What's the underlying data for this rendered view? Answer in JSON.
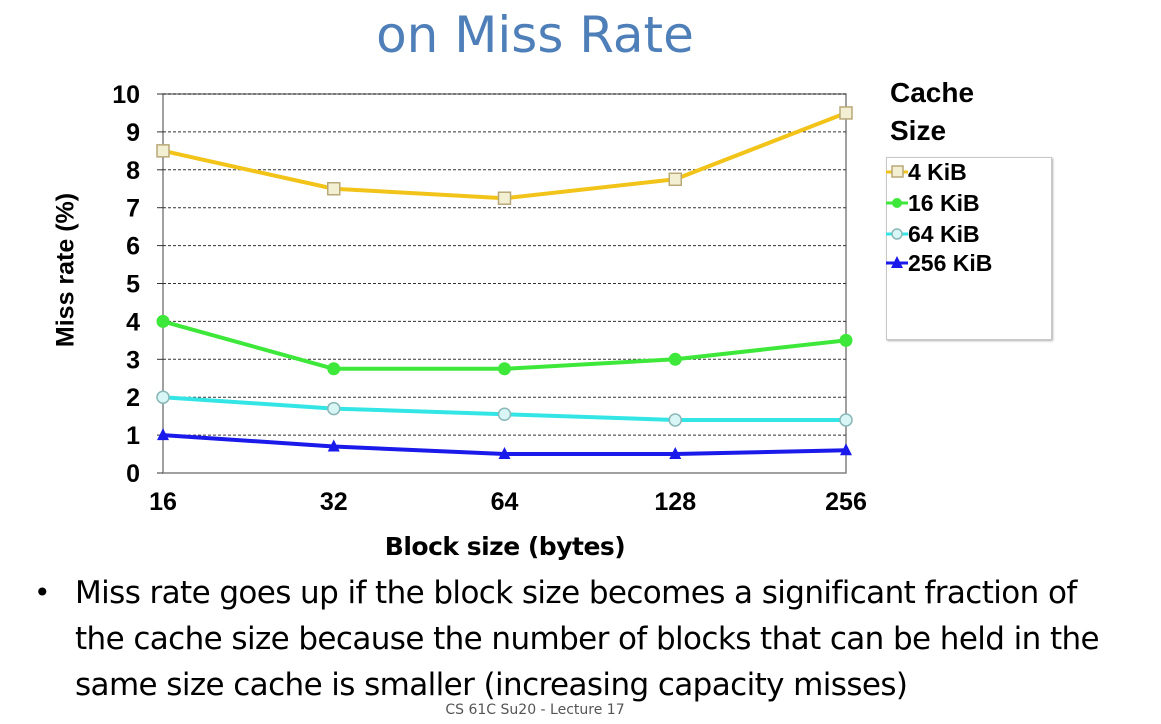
{
  "slide": {
    "title": "on Miss Rate",
    "bullets": [
      "Miss rate goes up if the block size becomes a significant fraction of the cache size because the number of blocks that can be held in the same size cache is smaller (increasing capacity misses)"
    ],
    "footer": "CS 61C Su20 - Lecture 17"
  },
  "chart_data": {
    "type": "line",
    "title": "",
    "xlabel": "Block size (bytes)",
    "ylabel": "Miss rate (%)",
    "categories": [
      "16",
      "32",
      "64",
      "128",
      "256"
    ],
    "ylim": [
      0,
      10
    ],
    "yticks": [
      "0",
      "1",
      "2",
      "3",
      "4",
      "5",
      "6",
      "7",
      "8",
      "9",
      "10"
    ],
    "grid": "horizontal dashed",
    "legend_title": "Cache Size",
    "legend_position": "right",
    "series": [
      {
        "name": "4 KiB",
        "values": [
          8.5,
          7.5,
          7.25,
          7.75,
          9.5
        ],
        "color": "#f2c319",
        "marker": "open-square"
      },
      {
        "name": "16 KiB",
        "values": [
          4.0,
          2.75,
          2.75,
          3.0,
          3.5
        ],
        "color": "#3ee83a",
        "marker": "filled-circle"
      },
      {
        "name": "64 KiB",
        "values": [
          2.0,
          1.7,
          1.55,
          1.4,
          1.4
        ],
        "color": "#33e5e5",
        "marker": "open-circle"
      },
      {
        "name": "256 KiB",
        "values": [
          1.0,
          0.7,
          0.5,
          0.5,
          0.6
        ],
        "color": "#1a1aeb",
        "marker": "filled-triangle"
      }
    ]
  }
}
